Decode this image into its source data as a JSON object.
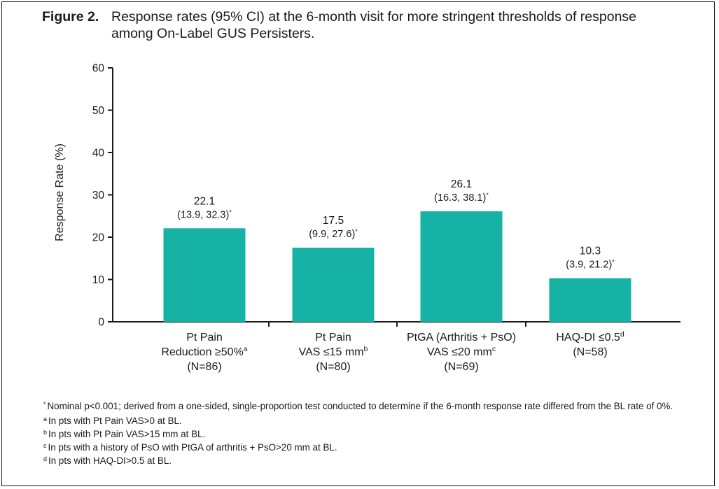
{
  "figure": {
    "label": "Figure 2.",
    "title": "Response rates (95% CI) at the 6-month visit for more stringent thresholds of response among On-Label GUS Persisters."
  },
  "colors": {
    "bar": "#16b2a6",
    "axis": "#1a1a1a",
    "text": "#1a1a1a"
  },
  "chart_data": {
    "type": "bar",
    "title": "",
    "xlabel": "",
    "ylabel": "Response Rate (%)",
    "ylim": [
      0,
      60
    ],
    "yticks": [
      0,
      10,
      20,
      30,
      40,
      50,
      60
    ],
    "grid": false,
    "categories": [
      {
        "lines": [
          "Pt Pain",
          "Reduction ≥50%",
          "(N=86)"
        ],
        "sup": "a"
      },
      {
        "lines": [
          "Pt Pain",
          "VAS ≤15 mm",
          "(N=80)"
        ],
        "sup": "b"
      },
      {
        "lines": [
          "PtGA (Arthritis + PsO)",
          "VAS ≤20 mm",
          "(N=69)"
        ],
        "sup": "c"
      },
      {
        "lines": [
          "HAQ-DI ≤0.5",
          "(N=58)"
        ],
        "sup": "d"
      }
    ],
    "values": [
      22.1,
      17.5,
      26.1,
      10.3
    ],
    "value_labels": [
      "22.1",
      "17.5",
      "26.1",
      "10.3"
    ],
    "ci_labels": [
      "(13.9, 32.3)",
      "(9.9, 27.6)",
      "(16.3, 38.1)",
      "(3.9, 21.2)"
    ],
    "ci_marker": "*"
  },
  "footnotes": [
    {
      "marker": "*",
      "text": "Nominal p<0.001; derived from a one-sided, single-proportion test conducted to determine if the 6-month response rate differed from the BL rate of 0%."
    },
    {
      "marker": "a",
      "text": "In pts with Pt Pain VAS>0 at BL."
    },
    {
      "marker": "b",
      "text": "In pts with Pt Pain VAS>15 mm at BL."
    },
    {
      "marker": "c",
      "text": "In pts with a history of PsO with PtGA of arthritis + PsO>20 mm at BL."
    },
    {
      "marker": "d",
      "text": "In pts with HAQ-DI>0.5 at BL."
    }
  ]
}
